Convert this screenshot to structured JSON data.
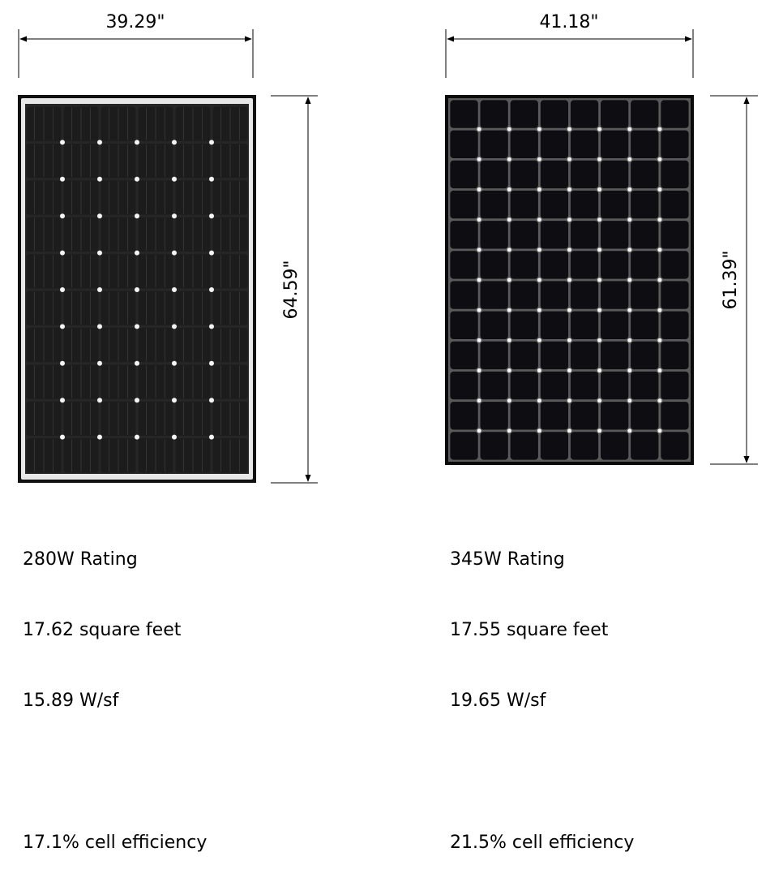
{
  "panels": [
    {
      "width_label": "39.29\"",
      "height_label": "64.59\"",
      "rating": "280W Rating",
      "area": "17.62 square feet",
      "density": "15.89 W/sf",
      "efficiency": "17.1% cell efficiency",
      "grid": {
        "cols": 6,
        "rows": 10
      },
      "colors": {
        "frame": "#e8e8e8",
        "cell": "#1c1c1c",
        "bus": "#d9d9d9"
      }
    },
    {
      "width_label": "41.18\"",
      "height_label": "61.39\"",
      "rating": "345W Rating",
      "area": "17.55 square feet",
      "density": "19.65 W/sf",
      "efficiency": "21.5% cell efficiency",
      "grid": {
        "cols": 8,
        "rows": 12
      },
      "colors": {
        "frame": "#0a0a0a",
        "cell": "#0d0d12",
        "bus": "#9a9a9a"
      }
    }
  ]
}
